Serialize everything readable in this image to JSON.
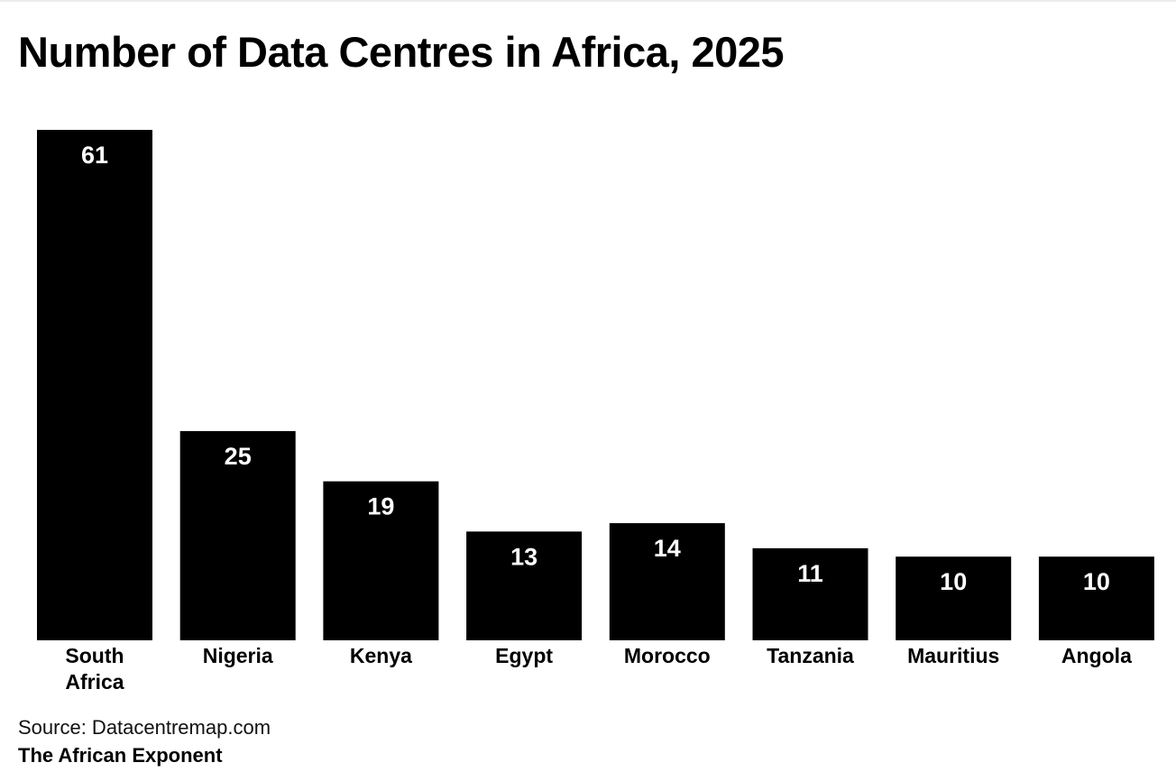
{
  "chart_data": {
    "type": "bar",
    "title": "Number of Data Centres in Africa, 2025",
    "categories": [
      [
        "South",
        "Africa"
      ],
      [
        "Nigeria"
      ],
      [
        "Kenya"
      ],
      [
        "Egypt"
      ],
      [
        "Morocco"
      ],
      [
        "Tanzania"
      ],
      [
        "Mauritius"
      ],
      [
        "Angola"
      ]
    ],
    "values": [
      61,
      25,
      19,
      13,
      14,
      11,
      10,
      10
    ],
    "xlabel": "",
    "ylabel": "",
    "ylim": [
      0,
      61
    ],
    "grid": false,
    "bar_color": "#000000",
    "label_color": "#ffffff"
  },
  "footer": {
    "source": "Source: Datacentremap.com",
    "brand": "The African Exponent"
  }
}
